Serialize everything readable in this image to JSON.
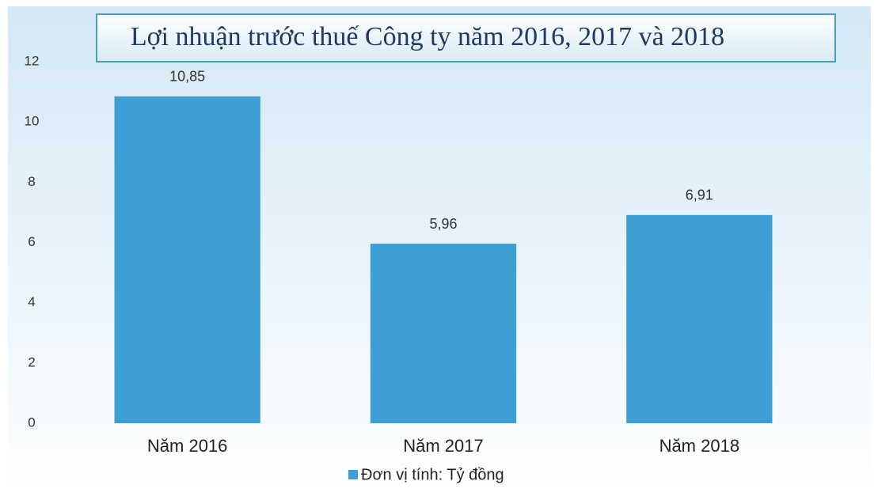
{
  "chart_data": {
    "type": "bar",
    "title": "Lợi nhuận trước thuế Công ty năm 2016, 2017 và 2018",
    "categories": [
      "Năm 2016",
      "Năm 2017",
      "Năm 2018"
    ],
    "series": [
      {
        "name": "Đơn vị tính: Tỷ đồng",
        "color": "#3d9fd3",
        "values": [
          10.85,
          5.96,
          6.91
        ],
        "value_labels": [
          "10,85",
          "5,96",
          "6,91"
        ]
      }
    ],
    "ylim": [
      0,
      12
    ],
    "yticks": [
      0,
      2,
      4,
      6,
      8,
      10,
      12
    ],
    "legend": "bottom"
  }
}
